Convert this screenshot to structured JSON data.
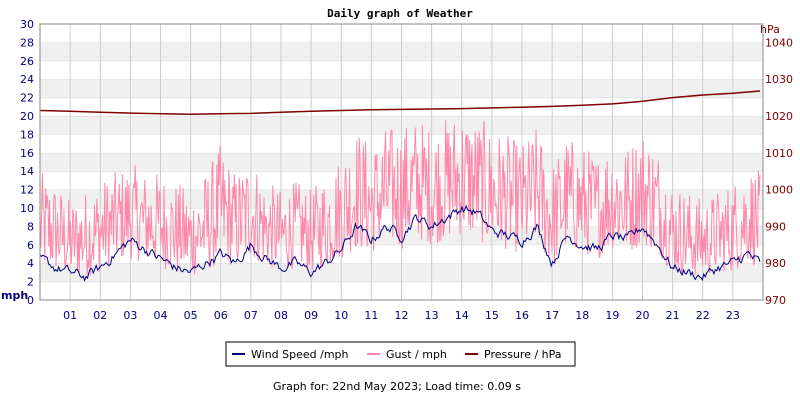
{
  "chart_data": {
    "type": "line",
    "title": "Daily graph of Weather",
    "y_left": {
      "unit_label": "mph",
      "range": [
        0,
        30
      ],
      "ticks": [
        0,
        2,
        4,
        6,
        8,
        10,
        12,
        14,
        16,
        18,
        20,
        22,
        24,
        26,
        28,
        30
      ]
    },
    "y_right": {
      "unit_label": "hPa",
      "range": [
        970,
        1045
      ],
      "ticks": [
        970,
        980,
        990,
        1000,
        1010,
        1020,
        1030,
        1040
      ]
    },
    "x": {
      "range": [
        0,
        24
      ],
      "tick_labels": [
        "01",
        "02",
        "03",
        "04",
        "05",
        "06",
        "07",
        "08",
        "09",
        "10",
        "11",
        "12",
        "13",
        "14",
        "15",
        "16",
        "17",
        "18",
        "19",
        "20",
        "21",
        "22",
        "23"
      ]
    },
    "grid": true,
    "legend_position": "bottom",
    "series": [
      {
        "name": "Wind Speed /mph",
        "color": "#000080",
        "axis": "left",
        "x": [
          0,
          0.5,
          1,
          1.5,
          2,
          2.5,
          3,
          3.5,
          4,
          4.5,
          5,
          5.5,
          6,
          6.5,
          7,
          7.5,
          8,
          8.5,
          9,
          9.5,
          10,
          10.5,
          11,
          11.5,
          12,
          12.5,
          13,
          13.5,
          14,
          14.5,
          15,
          15.5,
          16,
          16.5,
          17,
          17.5,
          18,
          18.5,
          19,
          19.5,
          20,
          20.5,
          21,
          21.5,
          22,
          22.5,
          23,
          23.5,
          23.9
        ],
        "values": [
          4.5,
          3.5,
          3,
          2.5,
          3.5,
          5,
          6.5,
          5.5,
          4.5,
          3.5,
          3,
          4,
          5,
          4,
          6,
          4.5,
          3.5,
          4,
          3,
          4,
          5.5,
          8,
          6.5,
          8,
          7,
          9,
          8,
          9,
          10,
          9.5,
          7.5,
          7,
          6.5,
          8,
          4,
          7,
          6,
          5.5,
          7,
          6.5,
          8,
          6,
          3.5,
          3,
          2.5,
          3.5,
          4,
          5,
          4
        ]
      },
      {
        "name": "Gust / mph",
        "color": "#ff88aa",
        "axis": "left",
        "x": [
          0,
          0.5,
          1,
          1.5,
          2,
          2.5,
          3,
          3.5,
          4,
          4.5,
          5,
          5.5,
          6,
          6.5,
          7,
          7.5,
          8,
          8.5,
          9,
          9.5,
          10,
          10.5,
          11,
          11.5,
          12,
          12.5,
          13,
          13.5,
          14,
          14.5,
          15,
          15.5,
          16,
          16.5,
          17,
          17.5,
          18,
          18.5,
          19,
          19.5,
          20,
          20.5,
          21,
          21.5,
          22,
          22.5,
          23,
          23.5,
          23.9
        ],
        "values": [
          9,
          8,
          7,
          7,
          8,
          9,
          10,
          9,
          9,
          8,
          8,
          9,
          10,
          9,
          10,
          8,
          8,
          9,
          8,
          9,
          11,
          13,
          12,
          14,
          14,
          15,
          14,
          15,
          17,
          16,
          14,
          13,
          12,
          14,
          10,
          13,
          12,
          11,
          13,
          12,
          14,
          12,
          8,
          8,
          7,
          8,
          9,
          10,
          9
        ],
        "min_values": [
          3,
          3,
          2.5,
          2.5,
          3,
          4,
          4.5,
          4,
          3.5,
          3,
          2.5,
          3,
          4,
          3.5,
          4.5,
          3.5,
          3,
          3.5,
          3,
          3.5,
          4.5,
          5.5,
          5,
          6,
          5.5,
          6.5,
          6,
          6.5,
          7,
          6.5,
          5.5,
          5.5,
          5,
          6,
          3.5,
          5.5,
          5,
          4.5,
          5.5,
          5,
          6,
          5,
          3,
          2.5,
          2.5,
          3,
          3,
          4,
          3.5
        ],
        "max_values": [
          14,
          13,
          11,
          12,
          13,
          14,
          15,
          14,
          14,
          13,
          12,
          14,
          17,
          14,
          16,
          13,
          12,
          13,
          12,
          14,
          16,
          19,
          17,
          19,
          19,
          20,
          19,
          20,
          21,
          20,
          19,
          18,
          17,
          19,
          15,
          18,
          17,
          16,
          18,
          17,
          19,
          17,
          13,
          12,
          11,
          12,
          13,
          15,
          14
        ]
      },
      {
        "name": "Pressure / hPa",
        "color": "#800000",
        "axis": "right",
        "x": [
          0,
          1,
          2,
          3,
          4,
          5,
          6,
          7,
          8,
          9,
          10,
          11,
          12,
          13,
          14,
          15,
          16,
          17,
          18,
          19,
          20,
          21,
          22,
          23,
          23.9
        ],
        "values": [
          1021.5,
          1021.3,
          1021,
          1020.8,
          1020.6,
          1020.5,
          1020.6,
          1020.7,
          1021,
          1021.3,
          1021.5,
          1021.7,
          1021.8,
          1021.9,
          1022,
          1022.2,
          1022.4,
          1022.6,
          1022.9,
          1023.3,
          1024,
          1025,
          1025.7,
          1026.2,
          1026.8
        ]
      }
    ],
    "footer": "Graph for: 22nd May 2023; Load time: 0.09 s"
  }
}
